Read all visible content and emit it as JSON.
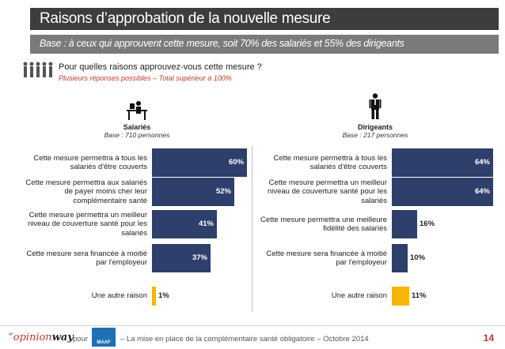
{
  "header": {
    "title": "Raisons d’approbation de la nouvelle mesure",
    "subtitle": "Base : à ceux qui approuvent cette mesure, soit 70% des salariés et 55% des dirigeants"
  },
  "question": {
    "text": "Pour quelles raisons approuvez-vous cette mesure ?",
    "note": "Plusieurs réponses possibles – Total supérieur à 100%"
  },
  "chart_data": [
    {
      "type": "bar",
      "orientation": "horizontal",
      "group": "Salariés",
      "base": "Base : 710 personnes",
      "categories": [
        "Cette mesure permettra à tous les salariés d'être couverts",
        "Cette mesure permettra aux salariés de payer moins cher leur complémentaire santé",
        "Cette mesure permettra un meilleur niveau de couverture santé pour les salariés",
        "Cette mesure sera financée à moitié par l'employeur",
        "Une autre raison"
      ],
      "values": [
        60,
        52,
        41,
        37,
        1
      ],
      "labels": [
        "60%",
        "52%",
        "41%",
        "37%",
        "1%"
      ],
      "xlim": [
        0,
        100
      ],
      "highlight_index": 4
    },
    {
      "type": "bar",
      "orientation": "horizontal",
      "group": "Dirigeants",
      "base": "Base : 217 personnes",
      "categories": [
        "Cette mesure permettra à tous les salariés d'être couverts",
        "Cette mesure permettra un meilleur niveau de couverture santé pour les salariés",
        "Cette mesure permettra une meilleure fidélité des salariés",
        "Cette mesure sera financée à moitié par l'employeur",
        "Une autre raison"
      ],
      "values": [
        64,
        64,
        16,
        10,
        11
      ],
      "labels": [
        "64%",
        "64%",
        "16%",
        "10%",
        "11%"
      ],
      "xlim": [
        0,
        100
      ],
      "highlight_index": 4
    }
  ],
  "colors": {
    "bar": "#2e3f6b",
    "highlight": "#f5b50c",
    "accent": "#c0392b"
  },
  "footer": {
    "brand_open": "“opinion",
    "brand_bold": "way",
    "pour": "pour",
    "logo_text": "MAAF",
    "text": "– La mise en place de la complémentaire santé obligatoire – Octobre 2014",
    "page": "14"
  }
}
